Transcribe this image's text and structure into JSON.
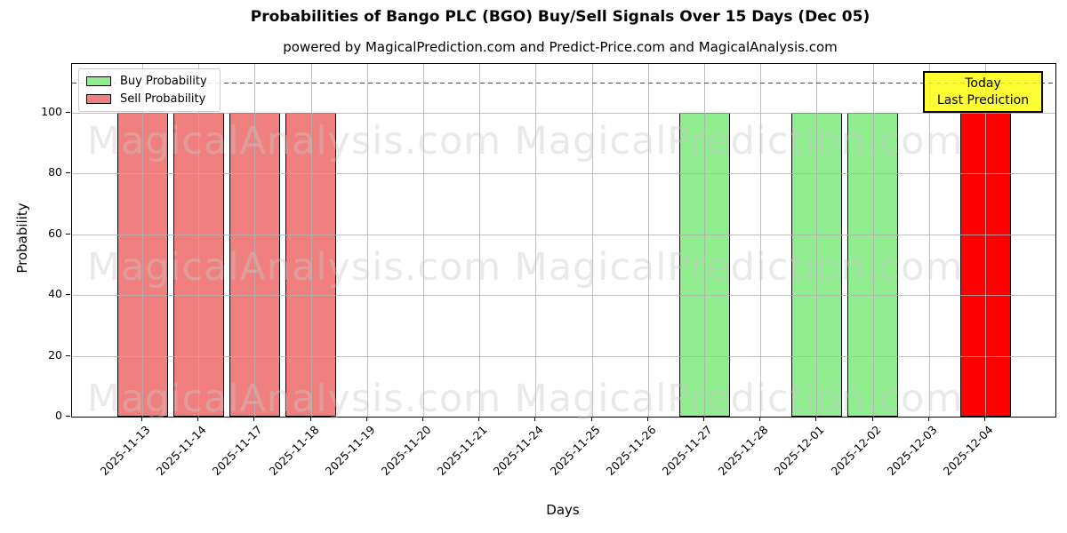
{
  "chart_data": {
    "type": "bar",
    "title": "Probabilities of Bango PLC (BGO) Buy/Sell Signals Over 15 Days (Dec 05)",
    "subtitle": "powered by MagicalPrediction.com and Predict-Price.com and MagicalAnalysis.com",
    "xlabel": "Days",
    "ylabel": "Probability",
    "ylim": [
      0,
      116
    ],
    "yticks": [
      0,
      20,
      40,
      60,
      80,
      100
    ],
    "grid": true,
    "dashed_reference_line_y": 110,
    "bar_edge_color": "#000000",
    "categories": [
      "2025-11-13",
      "2025-11-14",
      "2025-11-17",
      "2025-11-18",
      "2025-11-19",
      "2025-11-20",
      "2025-11-21",
      "2025-11-24",
      "2025-11-25",
      "2025-11-26",
      "2025-11-27",
      "2025-11-28",
      "2025-12-01",
      "2025-12-02",
      "2025-12-03",
      "2025-12-04"
    ],
    "series": [
      {
        "name": "Buy Probability",
        "color": "#90ee90",
        "values": [
          0,
          0,
          0,
          0,
          0,
          0,
          0,
          0,
          0,
          0,
          100,
          0,
          100,
          100,
          0,
          0
        ]
      },
      {
        "name": "Sell Probability",
        "color": "#f08080",
        "values": [
          100,
          100,
          100,
          100,
          0,
          0,
          0,
          0,
          0,
          0,
          0,
          0,
          0,
          0,
          0,
          0
        ]
      },
      {
        "name": "Today Prediction",
        "color": "#ff0000",
        "values": [
          0,
          0,
          0,
          0,
          0,
          0,
          0,
          0,
          0,
          0,
          0,
          0,
          0,
          0,
          0,
          100
        ]
      }
    ],
    "legend": {
      "position": "upper left",
      "entries": [
        {
          "label": "Buy Probability",
          "color": "#90ee90"
        },
        {
          "label": "Sell Probability",
          "color": "#f08080"
        }
      ]
    },
    "annotation_box": {
      "lines": [
        "Today",
        "Last Prediction"
      ],
      "bg_color": "#ffff00"
    },
    "watermarks": [
      "MagicalAnalysis.com",
      "MagicalPrediction.com"
    ]
  }
}
